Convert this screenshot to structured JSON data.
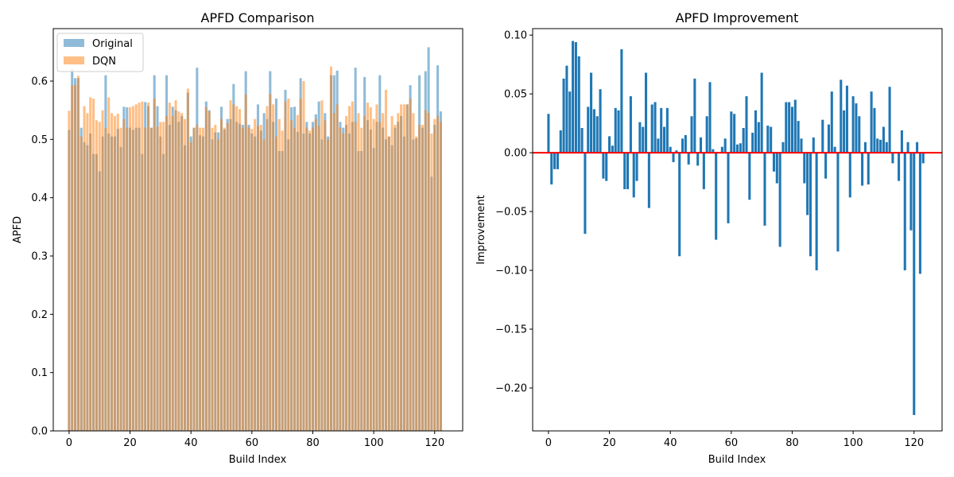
{
  "chart_data": [
    {
      "type": "bar",
      "title": "APFD Comparison",
      "xlabel": "Build Index",
      "ylabel": "APFD",
      "xlim": [
        -5.2,
        129.2
      ],
      "ylim": [
        0,
        0.69
      ],
      "xticks": [
        0,
        20,
        40,
        60,
        80,
        100,
        120
      ],
      "yticks": [
        0.0,
        0.1,
        0.2,
        0.3,
        0.4,
        0.5,
        0.6
      ],
      "ytick_format": 1,
      "legend": "top-left",
      "grid": false,
      "series": [
        {
          "name": "Original",
          "color": "#1f77b4",
          "alpha": 0.5,
          "values": [
            0.516,
            0.62,
            0.605,
            0.605,
            0.52,
            0.495,
            0.49,
            0.51,
            0.475,
            0.475,
            0.445,
            0.505,
            0.61,
            0.51,
            0.505,
            0.505,
            0.518,
            0.487,
            0.556,
            0.555,
            0.52,
            0.516,
            0.52,
            0.52,
            0.475,
            0.564,
            0.557,
            0.52,
            0.61,
            0.557,
            0.505,
            0.475,
            0.61,
            0.525,
            0.556,
            0.55,
            0.53,
            0.54,
            0.49,
            0.58,
            0.505,
            0.52,
            0.623,
            0.507,
            0.505,
            0.565,
            0.55,
            0.5,
            0.512,
            0.512,
            0.556,
            0.517,
            0.535,
            0.535,
            0.595,
            0.53,
            0.527,
            0.525,
            0.617,
            0.525,
            0.51,
            0.505,
            0.56,
            0.515,
            0.545,
            0.535,
            0.617,
            0.53,
            0.57,
            0.48,
            0.48,
            0.585,
            0.5,
            0.555,
            0.556,
            0.513,
            0.605,
            0.51,
            0.53,
            0.51,
            0.53,
            0.543,
            0.565,
            0.5,
            0.545,
            0.505,
            0.61,
            0.61,
            0.618,
            0.53,
            0.52,
            0.525,
            0.51,
            0.53,
            0.623,
            0.48,
            0.48,
            0.607,
            0.533,
            0.517,
            0.485,
            0.53,
            0.61,
            0.52,
            0.5,
            0.505,
            0.49,
            0.52,
            0.53,
            0.54,
            0.505,
            0.56,
            0.593,
            0.5,
            0.502,
            0.61,
            0.52,
            0.617,
            0.658,
            0.436,
            0.525,
            0.627,
            0.548
          ]
        },
        {
          "name": "DQN",
          "color": "#ff7f0e",
          "alpha": 0.5,
          "values": [
            0.549,
            0.593,
            0.593,
            0.609,
            0.505,
            0.557,
            0.545,
            0.572,
            0.57,
            0.533,
            0.53,
            0.55,
            0.52,
            0.572,
            0.545,
            0.54,
            0.544,
            0.52,
            0.535,
            0.52,
            0.555,
            0.557,
            0.56,
            0.563,
            0.565,
            0.52,
            0.563,
            0.52,
            0.57,
            0.522,
            0.53,
            0.53,
            0.54,
            0.563,
            0.54,
            0.567,
            0.548,
            0.545,
            0.535,
            0.587,
            0.495,
            0.52,
            0.525,
            0.52,
            0.52,
            0.555,
            0.548,
            0.52,
            0.525,
            0.5,
            0.535,
            0.52,
            0.528,
            0.567,
            0.56,
            0.557,
            0.552,
            0.52,
            0.577,
            0.52,
            0.518,
            0.535,
            0.523,
            0.525,
            0.5,
            0.557,
            0.578,
            0.56,
            0.505,
            0.535,
            0.515,
            0.565,
            0.57,
            0.533,
            0.52,
            0.542,
            0.57,
            0.6,
            0.52,
            0.515,
            0.52,
            0.535,
            0.523,
            0.567,
            0.533,
            0.5,
            0.625,
            0.545,
            0.56,
            0.52,
            0.51,
            0.54,
            0.557,
            0.565,
            0.53,
            0.545,
            0.52,
            0.54,
            0.563,
            0.555,
            0.535,
            0.56,
            0.53,
            0.545,
            0.585,
            0.505,
            0.54,
            0.525,
            0.545,
            0.56,
            0.56,
            0.56,
            0.57,
            0.545,
            0.505,
            0.525,
            0.525,
            0.55,
            0.545,
            0.51,
            0.535,
            0.54,
            0.53
          ]
        }
      ]
    },
    {
      "type": "bar",
      "title": "APFD Improvement",
      "xlabel": "Build Index",
      "ylabel": "Improvement",
      "xlim": [
        -5.2,
        129.2
      ],
      "ylim": [
        -0.2365,
        0.1055
      ],
      "xticks": [
        0,
        20,
        40,
        60,
        80,
        100,
        120
      ],
      "yticks": [
        -0.2,
        -0.15,
        -0.1,
        -0.05,
        0.0,
        0.05,
        0.1
      ],
      "ytick_format": 2,
      "grid": false,
      "reference_line": {
        "y": 0,
        "color": "#ff0000"
      },
      "series": [
        {
          "color": "#1f77b4",
          "values": [
            0.033,
            -0.027,
            -0.014,
            -0.014,
            0.019,
            0.063,
            0.074,
            0.052,
            0.095,
            0.094,
            0.082,
            0.021,
            -0.069,
            0.039,
            0.068,
            0.037,
            0.031,
            0.054,
            -0.022,
            -0.024,
            0.014,
            0.006,
            0.038,
            0.036,
            0.088,
            -0.031,
            -0.031,
            0.048,
            -0.038,
            -0.024,
            0.026,
            0.022,
            0.068,
            -0.047,
            0.041,
            0.043,
            0.012,
            0.038,
            0.022,
            0.038,
            0.005,
            -0.008,
            0.002,
            -0.088,
            0.012,
            0.015,
            -0.01,
            0.031,
            0.063,
            -0.011,
            0.013,
            -0.031,
            0.031,
            0.06,
            0.003,
            -0.074,
            0.0,
            0.005,
            0.012,
            -0.06,
            0.035,
            0.033,
            0.007,
            0.008,
            0.021,
            0.048,
            -0.04,
            0.017,
            0.036,
            0.026,
            0.068,
            -0.062,
            0.023,
            0.022,
            -0.016,
            -0.026,
            -0.08,
            0.009,
            0.043,
            0.043,
            0.039,
            0.045,
            0.027,
            0.012,
            -0.026,
            -0.053,
            -0.088,
            0.013,
            -0.1,
            0.0,
            0.028,
            -0.022,
            0.024,
            0.052,
            0.005,
            -0.084,
            0.062,
            0.036,
            0.057,
            -0.038,
            0.048,
            0.042,
            0.031,
            -0.028,
            0.009,
            -0.027,
            0.052,
            0.038,
            0.012,
            0.011,
            0.022,
            0.009,
            0.056,
            -0.009,
            0.0,
            -0.024,
            0.019,
            -0.1,
            0.009,
            -0.066,
            -0.223,
            0.009,
            -0.103,
            -0.009
          ]
        }
      ]
    }
  ]
}
